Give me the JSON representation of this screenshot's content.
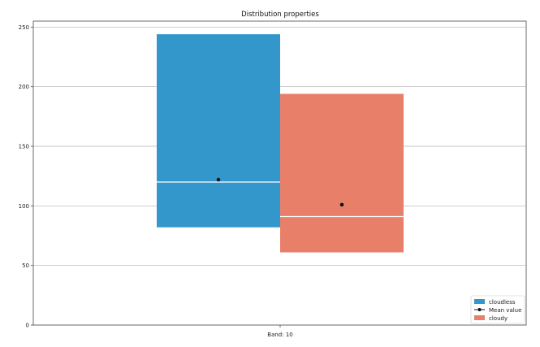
{
  "chart_data": {
    "type": "box",
    "title": "Distribution properties",
    "xlabel": "",
    "ylabel": "",
    "category_label": "Band: 10",
    "ylim": [
      0,
      255
    ],
    "yticks": [
      0,
      50,
      100,
      150,
      200,
      250
    ],
    "grid": "horizontal",
    "legend_position": "bottom-right",
    "legend": [
      "cloudless",
      "Mean value",
      "cloudy"
    ],
    "series": [
      {
        "name": "cloudless",
        "color": "#3497cc",
        "q1": 82,
        "median": 120,
        "q3": 244,
        "mean": 122
      },
      {
        "name": "cloudy",
        "color": "#e88069",
        "q1": 61,
        "median": 91,
        "q3": 194,
        "mean": 101
      }
    ],
    "mean_marker": {
      "label": "Mean value",
      "color": "#111111"
    }
  }
}
